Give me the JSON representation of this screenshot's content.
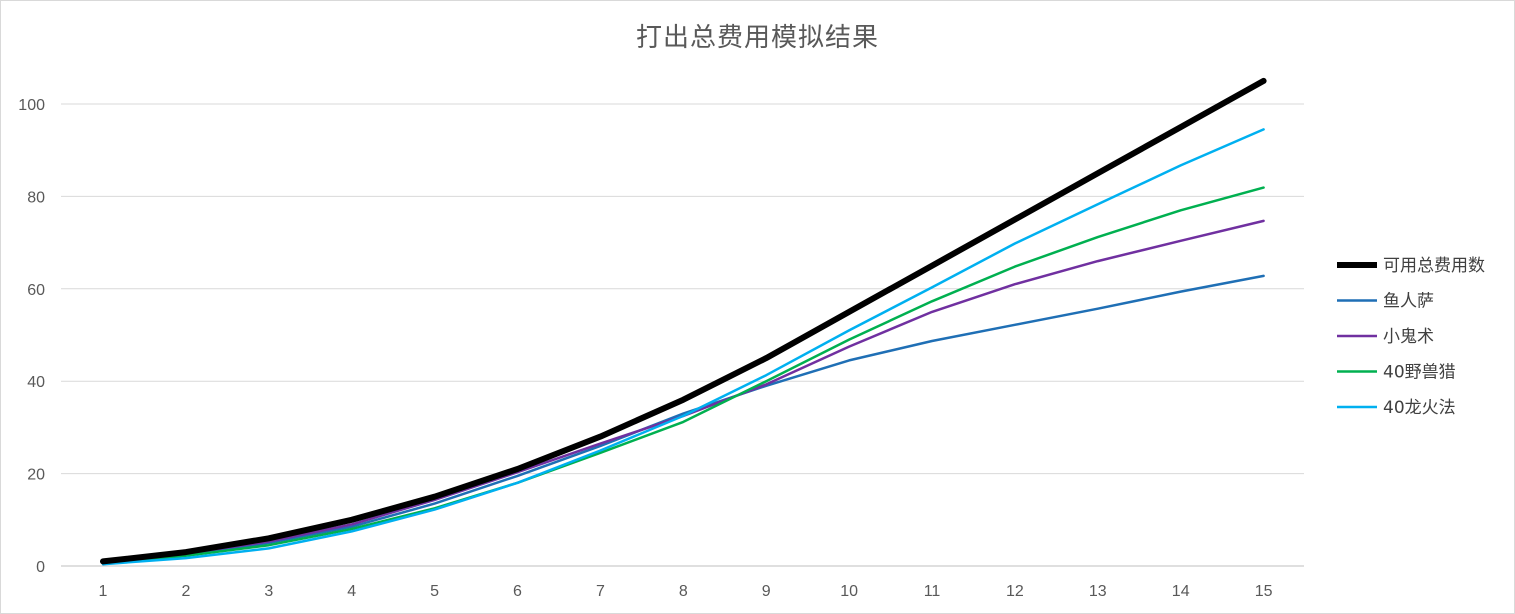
{
  "chart_data": {
    "type": "line",
    "title": "打出总费用模拟结果",
    "xlabel": "",
    "ylabel": "",
    "categories": [
      1,
      2,
      3,
      4,
      5,
      6,
      7,
      8,
      9,
      10,
      11,
      12,
      13,
      14,
      15
    ],
    "ylim": [
      0,
      110
    ],
    "yticks": [
      0,
      20,
      40,
      60,
      80,
      100
    ],
    "grid": true,
    "legend_position": "right",
    "series": [
      {
        "name": "可用总费用数",
        "color": "#000000",
        "width": 6,
        "values": [
          1,
          3,
          6,
          10,
          15,
          21,
          28,
          36,
          45,
          55,
          65,
          75,
          85,
          95,
          105
        ]
      },
      {
        "name": "鱼人萨",
        "color": "#1f6fb5",
        "width": 2.5,
        "values": [
          0.7,
          2.5,
          5.0,
          8.5,
          13.5,
          19.5,
          26.0,
          33.0,
          39.0,
          44.5,
          48.7,
          52.2,
          55.7,
          59.4,
          62.8
        ]
      },
      {
        "name": "小鬼术",
        "color": "#7030a0",
        "width": 2.5,
        "values": [
          0.8,
          2.7,
          5.3,
          9.0,
          14.3,
          20.3,
          26.5,
          32.5,
          39.3,
          47.5,
          55.0,
          61.0,
          66.0,
          70.4,
          74.7
        ]
      },
      {
        "name": "40野兽猎",
        "color": "#00b050",
        "width": 2.5,
        "values": [
          0.6,
          2.2,
          4.5,
          8.0,
          12.5,
          18.0,
          24.5,
          31.2,
          40.0,
          49.0,
          57.3,
          64.8,
          71.2,
          77.0,
          81.9
        ]
      },
      {
        "name": "40龙火法",
        "color": "#00b0f0",
        "width": 2.5,
        "values": [
          0.4,
          1.7,
          3.8,
          7.5,
          12.2,
          18.0,
          25.0,
          32.5,
          41.3,
          51.0,
          60.3,
          69.8,
          78.3,
          86.7,
          94.5
        ]
      }
    ]
  }
}
